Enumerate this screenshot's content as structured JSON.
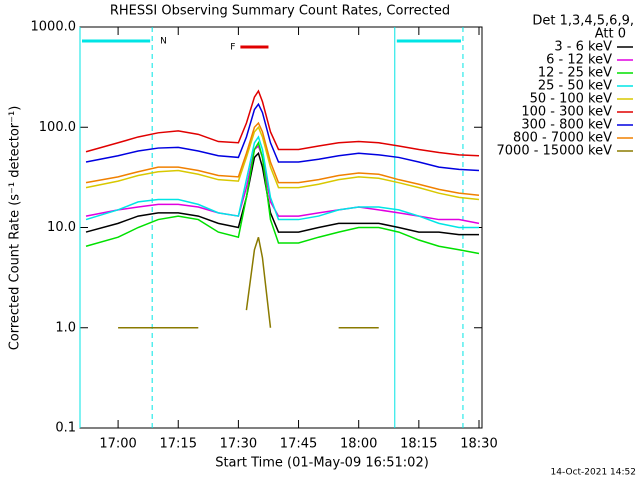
{
  "chart_data": {
    "type": "line",
    "title": "RHESSI Observing Summary Count Rates, Corrected",
    "xlabel": "Start Time (01-May-09 16:51:02)",
    "ylabel": "Corrected Count Rate (s⁻¹ detector⁻¹)",
    "legend_header": [
      "Det 1,3,4,5,6,9,",
      "Att 0"
    ],
    "timestamp": "14-Oct-2021 14:52",
    "log_y": true,
    "xlim": [
      "16:50:30",
      "18:30:45"
    ],
    "xticks": [
      "17:00",
      "17:15",
      "17:30",
      "17:45",
      "18:00",
      "18:15",
      "18:30"
    ],
    "ylim": [
      0.1,
      1000
    ],
    "yticks": [
      {
        "value": 1000,
        "label": "1000.0"
      },
      {
        "value": 100,
        "label": "100.0"
      },
      {
        "value": 10,
        "label": "10.0"
      },
      {
        "value": 1,
        "label": "1.0"
      },
      {
        "value": 0.1,
        "label": "0.1"
      }
    ],
    "night": {
      "label": "N",
      "color": "#00e5e5",
      "intervals": [
        [
          "16:50:30",
          "17:08:30"
        ],
        [
          "18:09:00",
          "18:26:00"
        ]
      ]
    },
    "flare": {
      "label": "F",
      "color": "#e00000",
      "start": "17:30:30",
      "end": "17:37:30"
    },
    "x": [
      "16:52",
      "17:00",
      "17:05",
      "17:10",
      "17:15",
      "17:20",
      "17:25",
      "17:30",
      "17:32",
      "17:34",
      "17:35",
      "17:36",
      "17:38",
      "17:40",
      "17:45",
      "17:50",
      "17:55",
      "18:00",
      "18:05",
      "18:10",
      "18:15",
      "18:20",
      "18:25",
      "18:30"
    ],
    "series": [
      {
        "name": "3 - 6 keV",
        "color": "#000000",
        "values": [
          9,
          11,
          13,
          14,
          14,
          13,
          11,
          10,
          20,
          50,
          55,
          40,
          14,
          9,
          9,
          10,
          11,
          11,
          11,
          10,
          9,
          9,
          8.5,
          8.5
        ]
      },
      {
        "name": "6 - 12 keV",
        "color": "#e000e0",
        "values": [
          13,
          15,
          16,
          17,
          17,
          16,
          14,
          13,
          25,
          60,
          65,
          50,
          18,
          13,
          13,
          14,
          15,
          16,
          15,
          14,
          13,
          12,
          12,
          11
        ]
      },
      {
        "name": "12 - 25 keV",
        "color": "#00e000",
        "values": [
          6.5,
          8,
          10,
          12,
          13,
          12,
          9,
          8,
          20,
          60,
          70,
          50,
          12,
          7,
          7,
          8,
          9,
          10,
          10,
          9,
          7.5,
          6.5,
          6,
          5.5
        ]
      },
      {
        "name": "25 - 50 keV",
        "color": "#00e5e5",
        "values": [
          12,
          15,
          18,
          19,
          19,
          17,
          14,
          13,
          30,
          70,
          80,
          60,
          20,
          12,
          12,
          13,
          15,
          16,
          16,
          15,
          13,
          11,
          10,
          10
        ]
      },
      {
        "name": "50 - 100 keV",
        "color": "#d8c800",
        "values": [
          25,
          29,
          33,
          36,
          37,
          34,
          30,
          29,
          50,
          90,
          100,
          80,
          40,
          25,
          25,
          27,
          30,
          32,
          31,
          28,
          25,
          22,
          20,
          19
        ]
      },
      {
        "name": "100 - 300 keV",
        "color": "#e00000",
        "values": [
          57,
          70,
          80,
          88,
          92,
          85,
          72,
          70,
          110,
          200,
          230,
          180,
          90,
          60,
          60,
          65,
          70,
          72,
          70,
          65,
          60,
          56,
          53,
          52
        ]
      },
      {
        "name": "300 - 800 keV",
        "color": "#0000e0",
        "values": [
          45,
          52,
          58,
          62,
          63,
          58,
          52,
          50,
          80,
          150,
          170,
          140,
          70,
          45,
          45,
          48,
          52,
          55,
          53,
          50,
          45,
          40,
          38,
          37
        ]
      },
      {
        "name": "800 - 7000 keV",
        "color": "#f08000",
        "values": [
          28,
          32,
          36,
          40,
          40,
          37,
          33,
          32,
          55,
          100,
          110,
          90,
          45,
          28,
          28,
          30,
          33,
          35,
          34,
          30,
          27,
          24,
          22,
          21
        ]
      },
      {
        "name": "7000 - 15000 keV",
        "color": "#8a7a00",
        "values": [
          null,
          1.0,
          1.0,
          1.0,
          1.0,
          1.0,
          null,
          null,
          1.5,
          6,
          8,
          5,
          1.0,
          null,
          null,
          null,
          1.0,
          1.0,
          1.0,
          null,
          null,
          null,
          null,
          null
        ]
      }
    ]
  }
}
